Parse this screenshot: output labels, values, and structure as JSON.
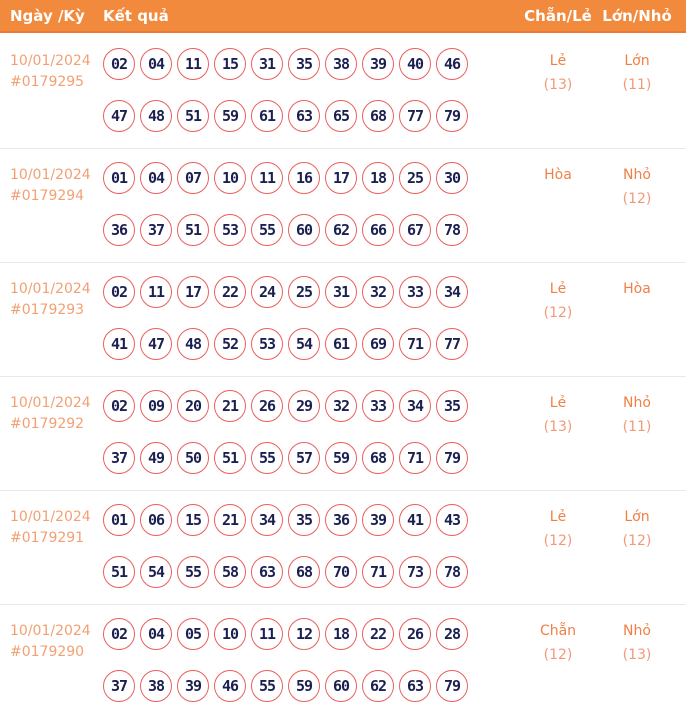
{
  "header": {
    "col_date": "Ngày /Kỳ",
    "col_result": "Kết quả",
    "col_evenodd": "Chẵn/Lẻ",
    "col_bigsmall": "Lớn/Nhỏ"
  },
  "colors": {
    "header_bg": "#f18a3d",
    "header_text": "#ffffff",
    "date_text": "#f2a073",
    "status_text": "#ef8147",
    "circle_border": "#ec5e5e",
    "number_text": "#1b2050",
    "row_separator": "#e9e9e9"
  },
  "rows": [
    {
      "date": "10/01/2024",
      "period": "#0179295",
      "numbers_line1": [
        "02",
        "04",
        "11",
        "15",
        "31",
        "35",
        "38",
        "39",
        "40",
        "46"
      ],
      "numbers_line2": [
        "47",
        "48",
        "51",
        "59",
        "61",
        "63",
        "65",
        "68",
        "77",
        "79"
      ],
      "even_odd": {
        "label": "Lẻ",
        "count": "(13)"
      },
      "big_small": {
        "label": "Lớn",
        "count": "(11)"
      }
    },
    {
      "date": "10/01/2024",
      "period": "#0179294",
      "numbers_line1": [
        "01",
        "04",
        "07",
        "10",
        "11",
        "16",
        "17",
        "18",
        "25",
        "30"
      ],
      "numbers_line2": [
        "36",
        "37",
        "51",
        "53",
        "55",
        "60",
        "62",
        "66",
        "67",
        "78"
      ],
      "even_odd": {
        "label": "Hòa",
        "count": ""
      },
      "big_small": {
        "label": "Nhỏ",
        "count": "(12)"
      }
    },
    {
      "date": "10/01/2024",
      "period": "#0179293",
      "numbers_line1": [
        "02",
        "11",
        "17",
        "22",
        "24",
        "25",
        "31",
        "32",
        "33",
        "34"
      ],
      "numbers_line2": [
        "41",
        "47",
        "48",
        "52",
        "53",
        "54",
        "61",
        "69",
        "71",
        "77"
      ],
      "even_odd": {
        "label": "Lẻ",
        "count": "(12)"
      },
      "big_small": {
        "label": "Hòa",
        "count": ""
      }
    },
    {
      "date": "10/01/2024",
      "period": "#0179292",
      "numbers_line1": [
        "02",
        "09",
        "20",
        "21",
        "26",
        "29",
        "32",
        "33",
        "34",
        "35"
      ],
      "numbers_line2": [
        "37",
        "49",
        "50",
        "51",
        "55",
        "57",
        "59",
        "68",
        "71",
        "79"
      ],
      "even_odd": {
        "label": "Lẻ",
        "count": "(13)"
      },
      "big_small": {
        "label": "Nhỏ",
        "count": "(11)"
      }
    },
    {
      "date": "10/01/2024",
      "period": "#0179291",
      "numbers_line1": [
        "01",
        "06",
        "15",
        "21",
        "34",
        "35",
        "36",
        "39",
        "41",
        "43"
      ],
      "numbers_line2": [
        "51",
        "54",
        "55",
        "58",
        "63",
        "68",
        "70",
        "71",
        "73",
        "78"
      ],
      "even_odd": {
        "label": "Lẻ",
        "count": "(12)"
      },
      "big_small": {
        "label": "Lớn",
        "count": "(12)"
      }
    },
    {
      "date": "10/01/2024",
      "period": "#0179290",
      "numbers_line1": [
        "02",
        "04",
        "05",
        "10",
        "11",
        "12",
        "18",
        "22",
        "26",
        "28"
      ],
      "numbers_line2": [
        "37",
        "38",
        "39",
        "46",
        "55",
        "59",
        "60",
        "62",
        "63",
        "79"
      ],
      "even_odd": {
        "label": "Chẵn",
        "count": "(12)"
      },
      "big_small": {
        "label": "Nhỏ",
        "count": "(13)"
      }
    }
  ]
}
